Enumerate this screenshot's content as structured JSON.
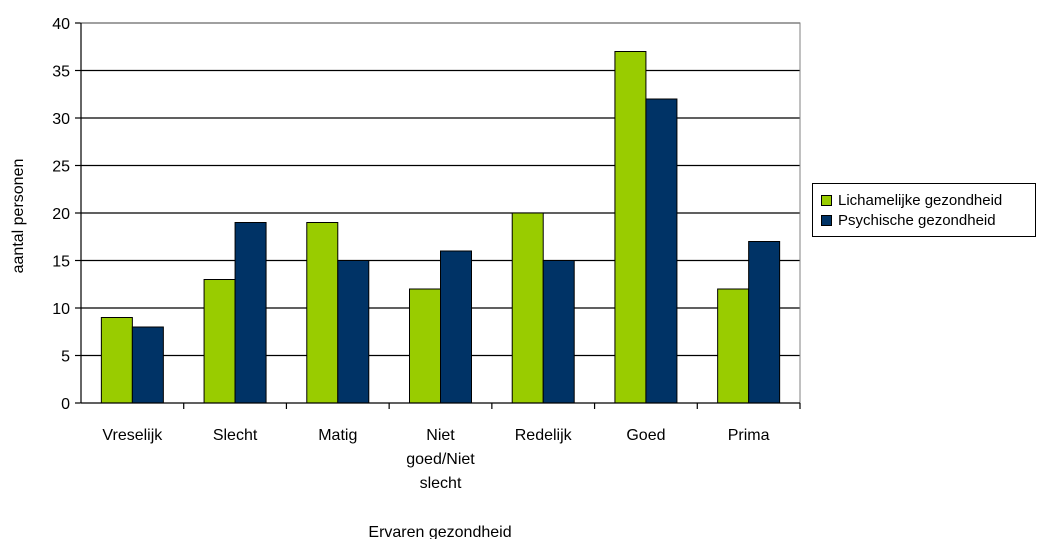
{
  "chart_data": {
    "type": "bar",
    "title": "",
    "xlabel": "Ervaren gezondheid",
    "ylabel": "aantal personen",
    "ylim": [
      0,
      40
    ],
    "yticks": [
      0,
      5,
      10,
      15,
      20,
      25,
      30,
      35,
      40
    ],
    "grid": true,
    "legend_position": "right",
    "categories": [
      [
        "Vreselijk"
      ],
      [
        "Slecht"
      ],
      [
        "Matig"
      ],
      [
        "Niet",
        "goed/Niet",
        "slecht"
      ],
      [
        "Redelijk"
      ],
      [
        "Goed"
      ],
      [
        "Prima"
      ]
    ],
    "series": [
      {
        "name": "Lichamelijke gezondheid",
        "color": "#99cc00",
        "values": [
          9,
          13,
          19,
          12,
          20,
          37,
          12
        ]
      },
      {
        "name": "Psychische gezondheid",
        "color": "#003366",
        "values": [
          8,
          19,
          15,
          16,
          15,
          32,
          17
        ]
      }
    ]
  }
}
